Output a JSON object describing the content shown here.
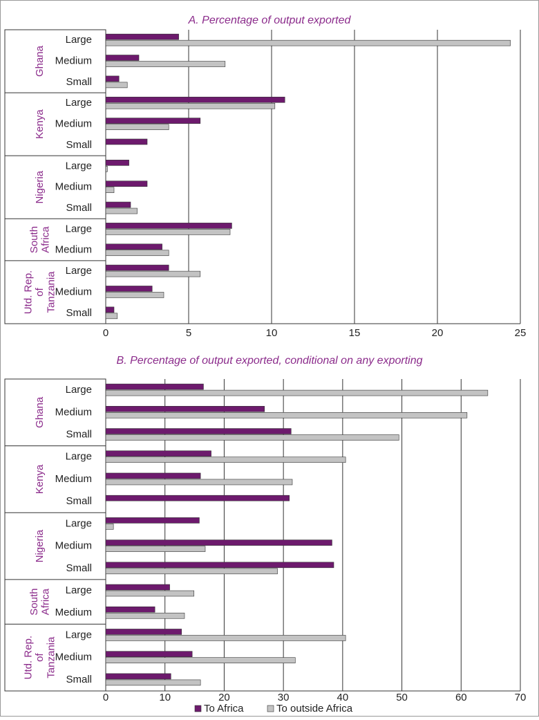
{
  "chart_data": [
    {
      "type": "bar",
      "title": "A. Percentage of output exported",
      "groups": [
        {
          "name": [
            "Ghana"
          ],
          "categories": [
            "Large",
            "Medium",
            "Small"
          ]
        },
        {
          "name": [
            "Kenya"
          ],
          "categories": [
            "Large",
            "Medium",
            "Small"
          ]
        },
        {
          "name": [
            "Nigeria"
          ],
          "categories": [
            "Large",
            "Medium",
            "Small"
          ]
        },
        {
          "name": [
            "South",
            "Africa"
          ],
          "categories": [
            "Large",
            "Medium"
          ]
        },
        {
          "name": [
            "Utd. Rep.",
            "of",
            "Tanzania"
          ],
          "categories": [
            "Large",
            "Medium",
            "Small"
          ]
        }
      ],
      "series": [
        {
          "color": "#6d1a6d",
          "values": [
            4.4,
            2.0,
            0.8,
            10.8,
            5.7,
            2.5,
            1.4,
            2.5,
            1.5,
            7.6,
            3.4,
            3.8,
            2.8,
            0.5
          ]
        },
        {
          "color": "#c3c3c3",
          "values": [
            24.4,
            7.2,
            1.3,
            10.2,
            3.8,
            null,
            0.1,
            0.5,
            1.9,
            7.5,
            3.8,
            5.7,
            3.5,
            0.7
          ]
        }
      ],
      "xlim": [
        0,
        25
      ],
      "xticks": [
        0,
        5,
        10,
        15,
        20,
        25
      ],
      "grid": true
    },
    {
      "type": "bar",
      "title": "B. Percentage of output exported, conditional  on any exporting",
      "groups": [
        {
          "name": [
            "Ghana"
          ],
          "categories": [
            "Large",
            "Medium",
            "Small"
          ]
        },
        {
          "name": [
            "Kenya"
          ],
          "categories": [
            "Large",
            "Medium",
            "Small"
          ]
        },
        {
          "name": [
            "Nigeria"
          ],
          "categories": [
            "Large",
            "Medium",
            "Small"
          ]
        },
        {
          "name": [
            "South",
            "Africa"
          ],
          "categories": [
            "Large",
            "Medium"
          ]
        },
        {
          "name": [
            "Utd. Rep.",
            "of",
            "Tanzania"
          ],
          "categories": [
            "Large",
            "Medium",
            "Small"
          ]
        }
      ],
      "series": [
        {
          "color": "#6d1a6d",
          "values": [
            16.5,
            26.8,
            31.3,
            17.8,
            16.0,
            31.0,
            15.8,
            38.2,
            38.5,
            10.8,
            8.3,
            12.8,
            14.6,
            11.0
          ]
        },
        {
          "color": "#c3c3c3",
          "values": [
            64.5,
            61.0,
            49.5,
            40.5,
            31.5,
            null,
            1.3,
            16.8,
            29.0,
            14.9,
            13.3,
            40.5,
            32.0,
            16.0
          ]
        }
      ],
      "xlim": [
        0,
        70
      ],
      "xticks": [
        0,
        10,
        20,
        30,
        40,
        50,
        60,
        70
      ],
      "grid": true
    }
  ],
  "legend": [
    {
      "name": "To Africa",
      "color": "#6d1a6d"
    },
    {
      "name": "To outside Africa",
      "color": "#c3c3c3"
    }
  ]
}
